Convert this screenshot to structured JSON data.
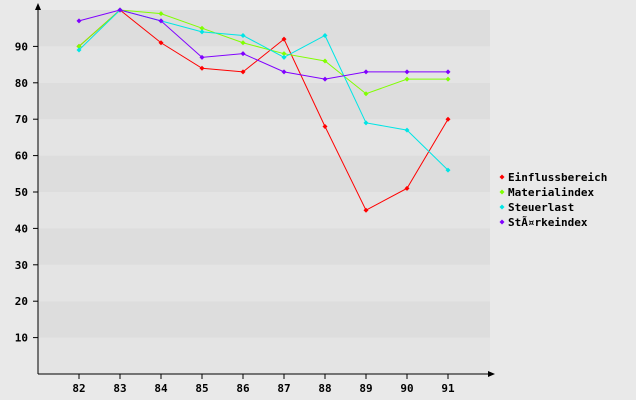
{
  "chart_data": {
    "type": "line",
    "title": "",
    "xlabel": "",
    "ylabel": "",
    "x": [
      "82",
      "83",
      "84",
      "85",
      "86",
      "87",
      "88",
      "89",
      "90",
      "91"
    ],
    "ylim": [
      0,
      100
    ],
    "yticks": [
      "10",
      "20",
      "30",
      "40",
      "50",
      "60",
      "70",
      "80",
      "90"
    ],
    "grid": "horizontal bands",
    "legend_position": "right",
    "series": [
      {
        "name": "Einflussbereich",
        "color": "#ff0000",
        "values": [
          90,
          100,
          91,
          84,
          83,
          92,
          68,
          45,
          51,
          70
        ]
      },
      {
        "name": "Materialindex",
        "color": "#80ff00",
        "values": [
          90,
          100,
          99,
          95,
          91,
          88,
          86,
          77,
          81,
          81
        ]
      },
      {
        "name": "Steuerlast",
        "color": "#00e5e5",
        "values": [
          89,
          100,
          97,
          94,
          93,
          87,
          93,
          69,
          67,
          56
        ]
      },
      {
        "name": "StÃ¤rkeindex",
        "color": "#8000ff",
        "values": [
          97,
          100,
          97,
          87,
          88,
          83,
          81,
          83,
          83,
          83
        ]
      }
    ]
  }
}
